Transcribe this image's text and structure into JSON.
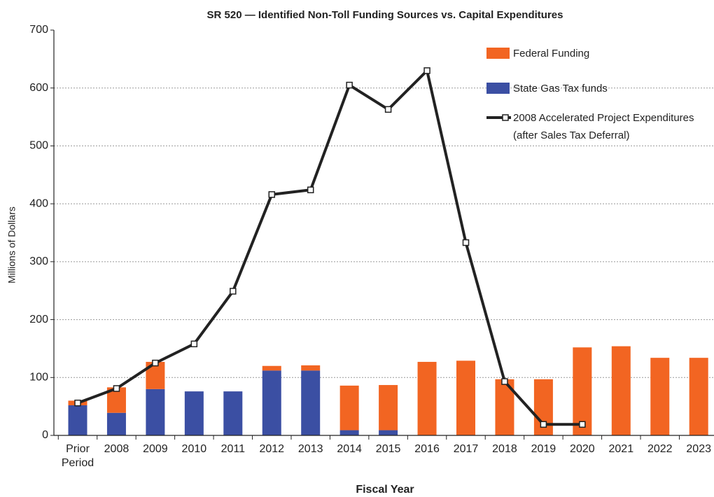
{
  "chart_data": {
    "type": "bar",
    "title": "SR 520 — Identified Non-Toll Funding Sources vs. Capital Expenditures",
    "x_label": "Fiscal Year",
    "y_label": "Millions of Dollars",
    "categories": [
      "Prior Period",
      "2008",
      "2009",
      "2010",
      "2011",
      "2012",
      "2013",
      "2014",
      "2015",
      "2016",
      "2017",
      "2018",
      "2019",
      "2020",
      "2021",
      "2022",
      "2023"
    ],
    "series": [
      {
        "name": "State Gas Tax funds",
        "type": "bar",
        "color": "#3b4fa3",
        "values": [
          52,
          39,
          80,
          76,
          76,
          112,
          112,
          9,
          9,
          0,
          0,
          0,
          0,
          0,
          0,
          0,
          0
        ]
      },
      {
        "name": "Federal Funding",
        "type": "bar",
        "color": "#f26522",
        "values": [
          8,
          44,
          47,
          0,
          0,
          8,
          9,
          77,
          78,
          127,
          129,
          97,
          97,
          152,
          154,
          134,
          134
        ]
      },
      {
        "name": "2008 Accelerated Project Expenditures (after Sales Tax Deferral)",
        "type": "line",
        "color": "#222222",
        "values": [
          56,
          81,
          125,
          158,
          249,
          416,
          424,
          605,
          563,
          630,
          333,
          93,
          19,
          19,
          null,
          null,
          null
        ]
      }
    ],
    "stacked": true,
    "ylim": [
      0,
      700
    ],
    "yticks": [
      0,
      100,
      200,
      300,
      400,
      500,
      600,
      700
    ],
    "grid": true,
    "legend": "top-right"
  }
}
